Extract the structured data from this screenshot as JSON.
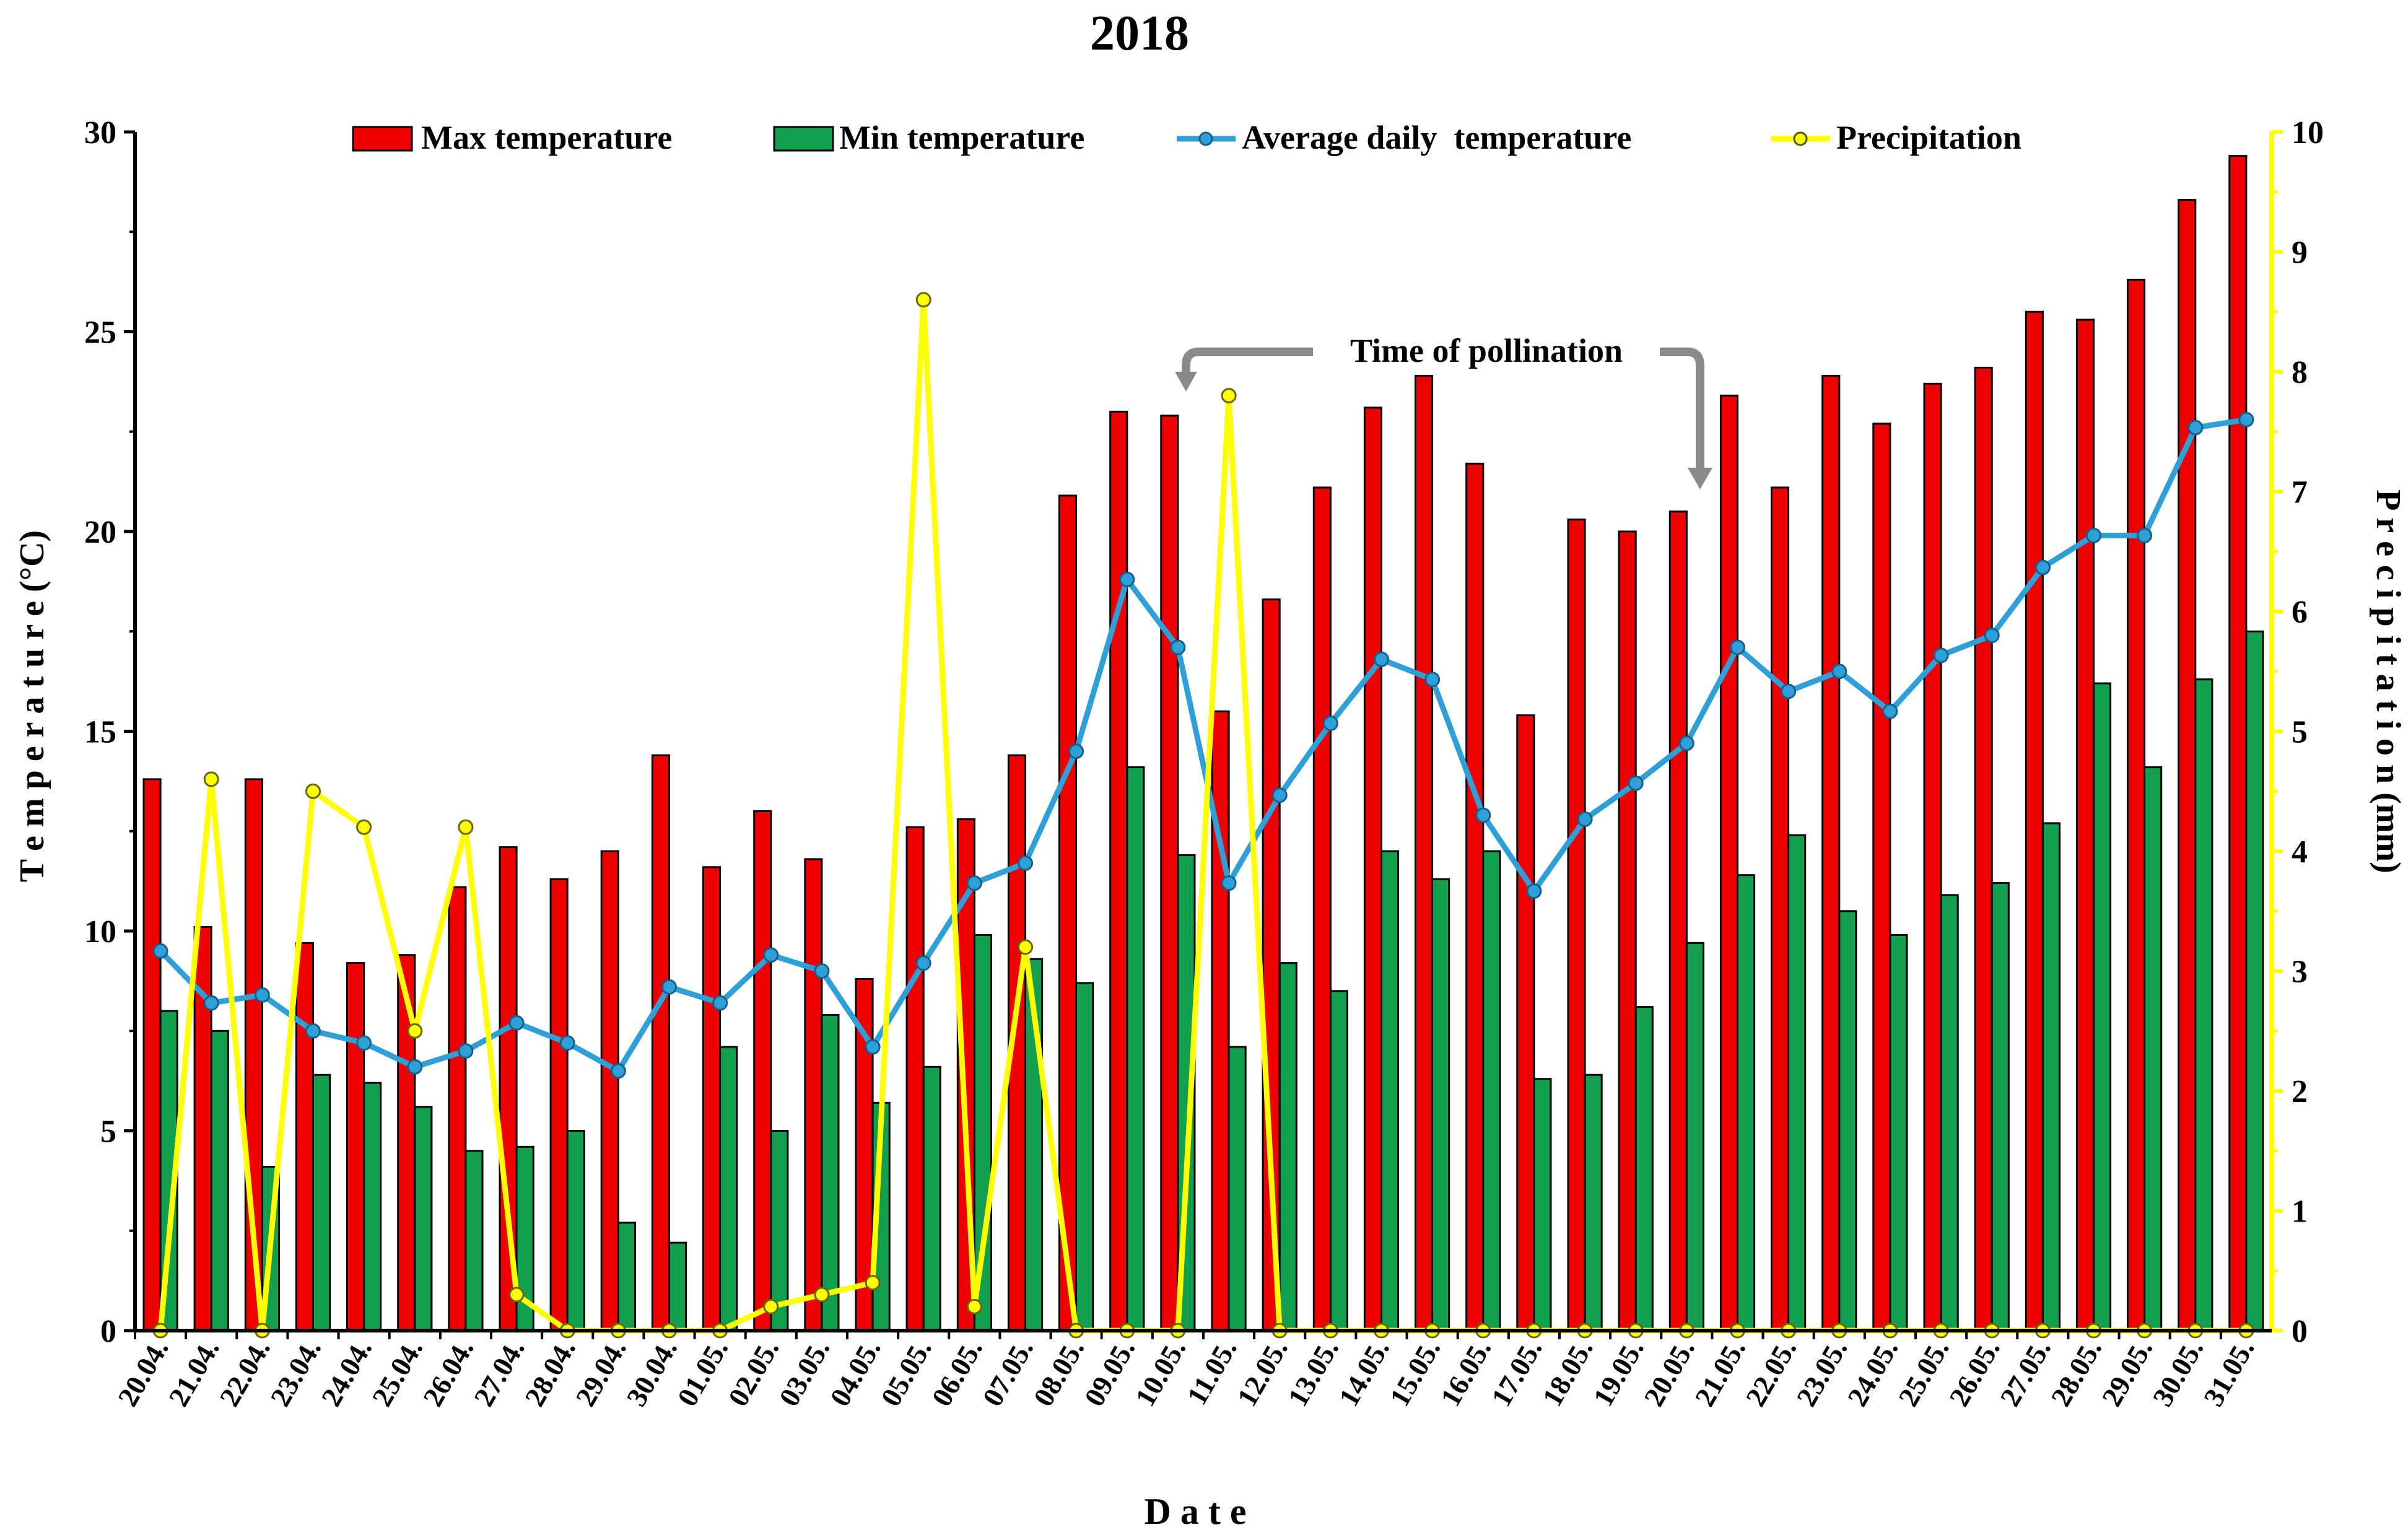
{
  "chart_data": {
    "type": "bar",
    "title": "2018",
    "xlabel": "D a t e",
    "ylabel": "T e m p e r a t u r e (°C)",
    "y2label": "P r e c i p i t a t i o n (mm)",
    "ylim": [
      0,
      30
    ],
    "y2lim": [
      0,
      10
    ],
    "yticks": [
      "0",
      "5",
      "10",
      "15",
      "20",
      "25",
      "30"
    ],
    "y2ticks": [
      "0",
      "1",
      "2",
      "3",
      "4",
      "5",
      "6",
      "7",
      "8",
      "9",
      "10"
    ],
    "categories": [
      "20.04.",
      "21.04.",
      "22.04.",
      "23.04.",
      "24.04.",
      "25.04.",
      "26.04.",
      "27.04.",
      "28.04.",
      "29.04.",
      "30.04.",
      "01.05.",
      "02.05.",
      "03.05.",
      "04.05.",
      "05.05.",
      "06.05.",
      "07.05.",
      "08.05.",
      "09.05.",
      "10.05.",
      "11.05.",
      "12.05.",
      "13.05.",
      "14.05.",
      "15.05.",
      "16.05.",
      "17.05.",
      "18.05.",
      "19.05.",
      "20.05.",
      "21.05.",
      "22.05.",
      "23.05.",
      "24.05.",
      "25.05.",
      "26.05.",
      "27.05.",
      "28.05.",
      "29.05.",
      "30.05.",
      "31.05."
    ],
    "series": [
      {
        "name": "Max temperature",
        "kind": "bar",
        "axis": "left",
        "color": "#ee0000",
        "values": [
          13.8,
          10.1,
          13.8,
          9.7,
          9.2,
          9.4,
          11.1,
          12.1,
          11.3,
          12.0,
          14.4,
          11.6,
          13.0,
          11.8,
          8.8,
          12.6,
          12.8,
          14.4,
          20.9,
          23.0,
          22.9,
          15.5,
          18.3,
          21.1,
          23.1,
          23.9,
          21.7,
          15.4,
          20.3,
          20.0,
          20.5,
          23.4,
          21.1,
          23.9,
          22.7,
          23.7,
          24.1,
          25.5,
          25.3,
          26.3,
          28.3,
          29.4
        ]
      },
      {
        "name": "Min temperature",
        "kind": "bar",
        "axis": "left",
        "color": "#10a050",
        "values": [
          8.0,
          7.5,
          4.1,
          6.4,
          6.2,
          5.6,
          4.5,
          4.6,
          5.0,
          2.7,
          2.2,
          7.1,
          5.0,
          7.9,
          5.7,
          6.6,
          9.9,
          9.3,
          8.7,
          14.1,
          11.9,
          7.1,
          9.2,
          8.5,
          12.0,
          11.3,
          12.0,
          6.3,
          6.4,
          8.1,
          9.7,
          11.4,
          12.4,
          10.5,
          9.9,
          10.9,
          11.2,
          12.7,
          16.2,
          14.1,
          16.3,
          17.5
        ]
      },
      {
        "name": "Average daily  temperature",
        "kind": "line",
        "axis": "left",
        "color": "#2f9fd8",
        "values": [
          9.5,
          8.2,
          8.4,
          7.5,
          7.2,
          6.6,
          7.0,
          7.7,
          7.2,
          6.5,
          8.6,
          8.2,
          9.4,
          9.0,
          7.1,
          9.2,
          11.2,
          11.7,
          14.5,
          18.8,
          17.1,
          11.2,
          13.4,
          15.2,
          16.8,
          16.3,
          12.9,
          11.0,
          12.8,
          13.7,
          14.7,
          17.1,
          16.0,
          16.5,
          15.5,
          16.9,
          17.4,
          19.1,
          19.9,
          19.9,
          22.6,
          22.8
        ]
      },
      {
        "name": "Precipitation",
        "kind": "line",
        "axis": "right",
        "color": "#ffff00",
        "values": [
          0,
          4.6,
          0,
          4.5,
          4.2,
          2.5,
          4.2,
          0.3,
          0,
          0,
          0,
          0,
          0.2,
          0.3,
          0.4,
          8.6,
          0.2,
          3.2,
          0,
          0,
          0,
          7.8,
          0,
          0,
          0,
          0,
          0,
          0,
          0,
          0,
          0,
          0,
          0,
          0,
          0,
          0,
          0,
          0,
          0,
          0,
          0,
          0
        ]
      }
    ],
    "annotation": {
      "text": "Time of pollination",
      "from": "10.05.",
      "to": "20.05."
    },
    "legend_position": "top"
  }
}
